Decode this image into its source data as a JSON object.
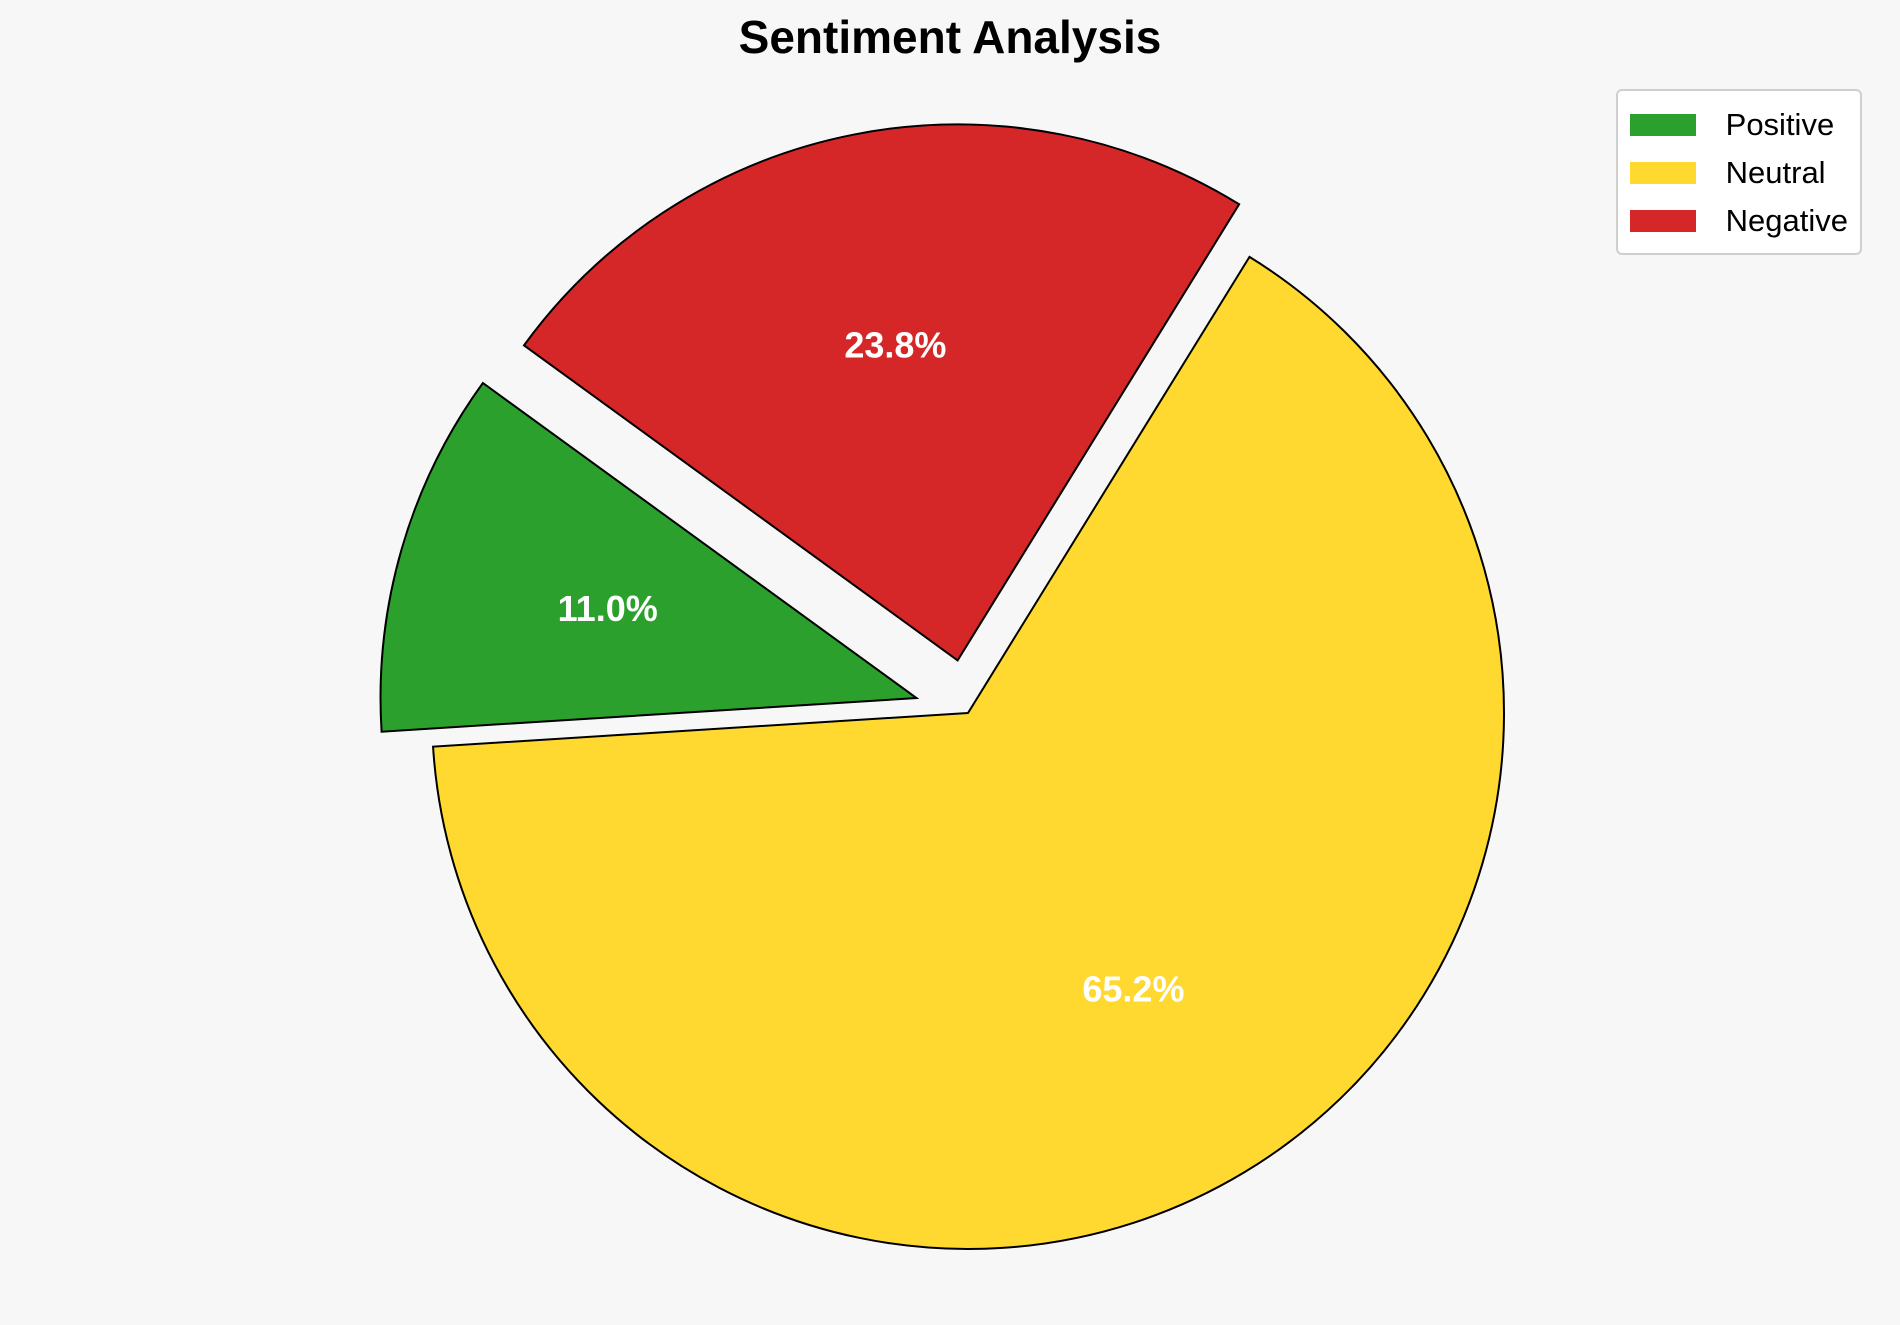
{
  "chart_data": {
    "type": "pie",
    "title": "Sentiment Analysis",
    "start_angle_deg": 144,
    "direction": "counterclockwise",
    "slices": [
      {
        "name": "Positive",
        "value": 11.0,
        "label": "11.0%",
        "color": "#2ca02c",
        "exploded": true
      },
      {
        "name": "Neutral",
        "value": 65.2,
        "label": "65.2%",
        "color": "#ffd92f",
        "exploded": false
      },
      {
        "name": "Negative",
        "value": 23.8,
        "label": "23.8%",
        "color": "#d62728",
        "exploded": true
      }
    ],
    "legend": {
      "placement": "top-right",
      "entries": [
        "Positive",
        "Neutral",
        "Negative"
      ]
    }
  }
}
